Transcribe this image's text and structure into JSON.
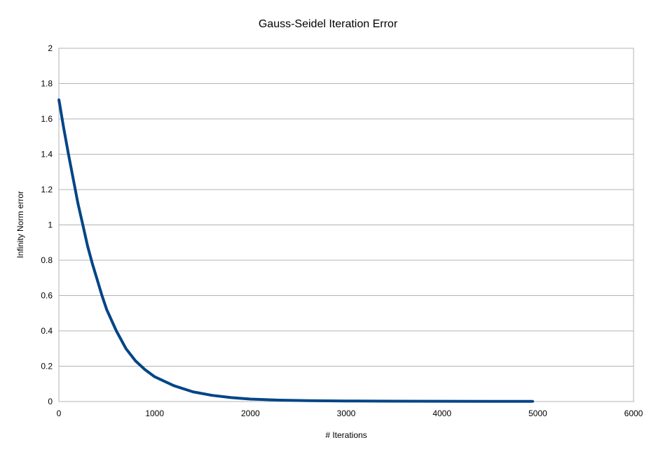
{
  "chart_data": {
    "type": "line",
    "title": "Gauss-Seidel Iteration Error",
    "xlabel": "# Iterations",
    "ylabel": "Infinity Norm error",
    "xlim": [
      0,
      6000
    ],
    "ylim": [
      0,
      2
    ],
    "xticks": [
      "0",
      "1000",
      "2000",
      "3000",
      "4000",
      "5000",
      "6000"
    ],
    "yticks": [
      "0",
      "0.2",
      "0.4",
      "0.6",
      "0.8",
      "1",
      "1.2",
      "1.4",
      "1.6",
      "1.8",
      "2"
    ],
    "grid": true,
    "legend": "none",
    "series": [
      {
        "color": "#004586",
        "x": [
          0,
          50,
          100,
          150,
          200,
          250,
          300,
          350,
          400,
          450,
          500,
          600,
          700,
          800,
          900,
          1000,
          1200,
          1400,
          1600,
          1800,
          2000,
          2300,
          2600,
          3000,
          3500,
          4000,
          4500,
          4950
        ],
        "y": [
          1.71,
          1.55,
          1.4,
          1.26,
          1.12,
          1.0,
          0.88,
          0.78,
          0.69,
          0.6,
          0.52,
          0.4,
          0.3,
          0.23,
          0.18,
          0.14,
          0.09,
          0.055,
          0.035,
          0.022,
          0.014,
          0.008,
          0.005,
          0.003,
          0.002,
          0.0015,
          0.001,
          0.001
        ]
      }
    ]
  }
}
